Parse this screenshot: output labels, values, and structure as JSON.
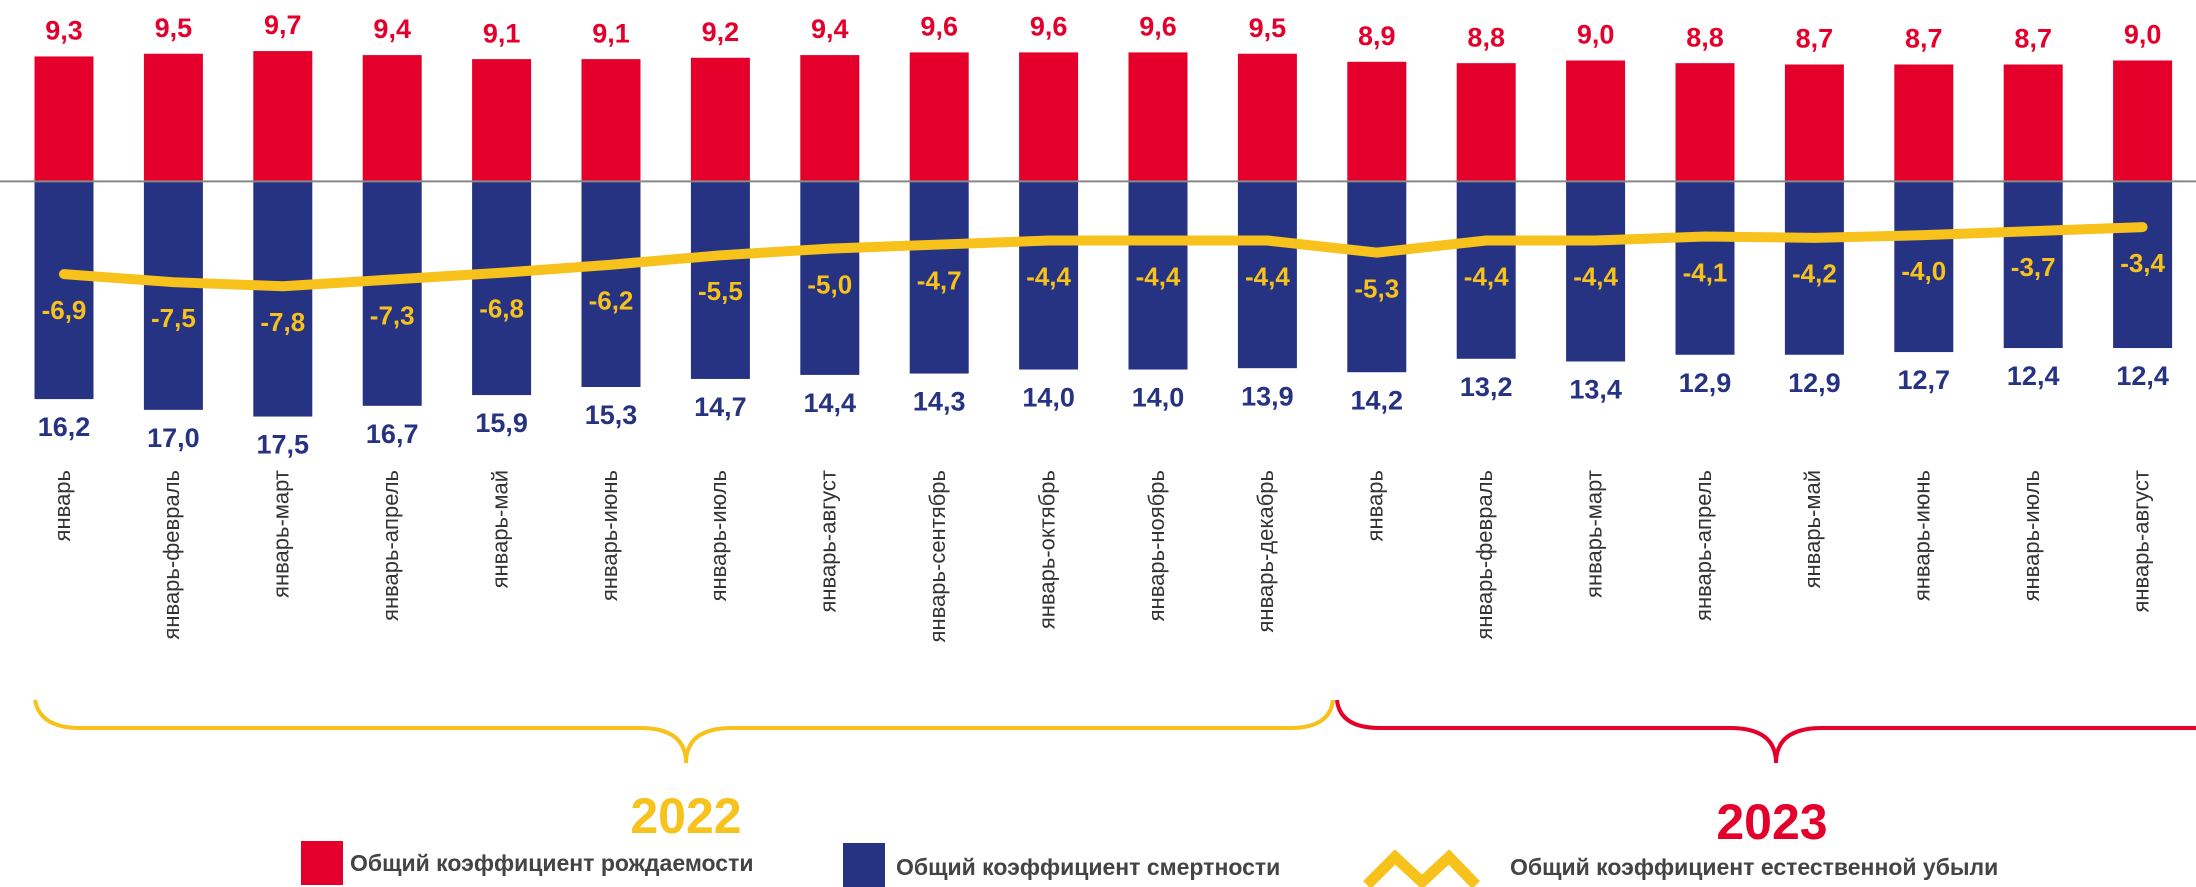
{
  "chart_data": {
    "type": "bar-line",
    "categories": [
      "январь",
      "январь-февраль",
      "январь-март",
      "январь-апрель",
      "январь-май",
      "январь-июнь",
      "январь-июль",
      "январь-август",
      "январь-сентябрь",
      "январь-октябрь",
      "январь-ноябрь",
      "январь-декабрь",
      "январь",
      "январь-февраль",
      "январь-март",
      "январь-апрель",
      "январь-май",
      "январь-июнь",
      "январь-июль",
      "январь-август"
    ],
    "series": [
      {
        "name": "Общий коэффициент рождаемости",
        "color": "#e4002b",
        "kind": "bar-up",
        "values": [
          9.3,
          9.5,
          9.7,
          9.4,
          9.1,
          9.1,
          9.2,
          9.4,
          9.6,
          9.6,
          9.6,
          9.5,
          8.9,
          8.8,
          9.0,
          8.8,
          8.7,
          8.7,
          8.7,
          9.0
        ],
        "value_labels": [
          "9,3",
          "9,5",
          "9,7",
          "9,4",
          "9,1",
          "9,1",
          "9,2",
          "9,4",
          "9,6",
          "9,6",
          "9,6",
          "9,5",
          "8,9",
          "8,8",
          "9,0",
          "8,8",
          "8,7",
          "8,7",
          "8,7",
          "9,0"
        ]
      },
      {
        "name": "Общий коэффициент смертности",
        "color": "#263282",
        "kind": "bar-down",
        "values": [
          16.2,
          17.0,
          17.5,
          16.7,
          15.9,
          15.3,
          14.7,
          14.4,
          14.3,
          14.0,
          14.0,
          13.9,
          14.2,
          13.2,
          13.4,
          12.9,
          12.9,
          12.7,
          12.4,
          12.4
        ],
        "value_labels": [
          "16,2",
          "17,0",
          "17,5",
          "16,7",
          "15,9",
          "15,3",
          "14,7",
          "14,4",
          "14,3",
          "14,0",
          "14,0",
          "13,9",
          "14,2",
          "13,2",
          "13,4",
          "12,9",
          "12,9",
          "12,7",
          "12,4",
          "12,4"
        ]
      },
      {
        "name": "Общий коэффициент естественной убыли",
        "color": "#f7c21b",
        "kind": "line",
        "values": [
          -6.9,
          -7.5,
          -7.8,
          -7.3,
          -6.8,
          -6.2,
          -5.5,
          -5.0,
          -4.7,
          -4.4,
          -4.4,
          -4.4,
          -5.3,
          -4.4,
          -4.4,
          -4.1,
          -4.2,
          -4.0,
          -3.7,
          -3.4
        ],
        "value_labels": [
          "-6,9",
          "-7,5",
          "-7,8",
          "-7,3",
          "-6,8",
          "-6,2",
          "-5,5",
          "-5,0",
          "-4,7",
          "-4,4",
          "-4,4",
          "-4,4",
          "-5,3",
          "-4,4",
          "-4,4",
          "-4,1",
          "-4,2",
          "-4,0",
          "-3,7",
          "-3,4"
        ]
      }
    ],
    "years": [
      {
        "label": "2022",
        "color": "#f7c21b"
      },
      {
        "label": "2023",
        "color": "#e4002b"
      }
    ],
    "ylim": [
      -18.5,
      13.5
    ]
  }
}
